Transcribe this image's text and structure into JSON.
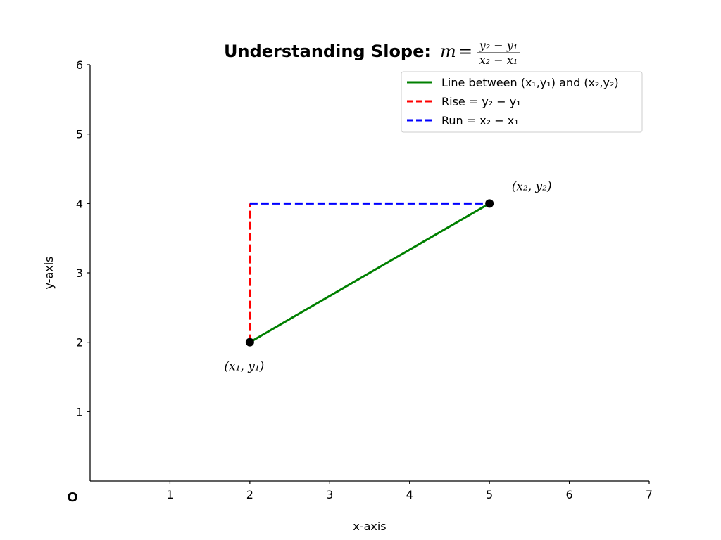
{
  "chart_data": {
    "type": "line",
    "title": "Understanding Slope:",
    "title_formula": {
      "lhs": "m",
      "numerator": "y₂ − y₁",
      "denominator": "x₂ − x₁"
    },
    "xlabel": "x-axis",
    "ylabel": "y-axis",
    "origin_label": "O",
    "xlim": [
      0,
      7
    ],
    "ylim": [
      0,
      6
    ],
    "xticks": [
      1,
      2,
      3,
      4,
      5,
      6,
      7
    ],
    "yticks": [
      1,
      2,
      3,
      4,
      5,
      6
    ],
    "grid": false,
    "legend_position": "top-right",
    "points": [
      {
        "x": 2,
        "y": 2,
        "label": "(x₁,  y₁)"
      },
      {
        "x": 5,
        "y": 4,
        "label": "(x₂,  y₂)"
      }
    ],
    "series": [
      {
        "name": "Line between (x₁,y₁) and (x₂,y₂)",
        "style": "solid",
        "color": "#008000",
        "x": [
          2,
          5
        ],
        "y": [
          2,
          4
        ]
      },
      {
        "name": "Rise = y₂ − y₁",
        "style": "dashed",
        "color": "#ff0000",
        "x": [
          2,
          2
        ],
        "y": [
          2,
          4
        ]
      },
      {
        "name": "Run = x₂ − x₁",
        "style": "dashed",
        "color": "#0000ff",
        "x": [
          2,
          5
        ],
        "y": [
          4,
          4
        ]
      }
    ]
  }
}
